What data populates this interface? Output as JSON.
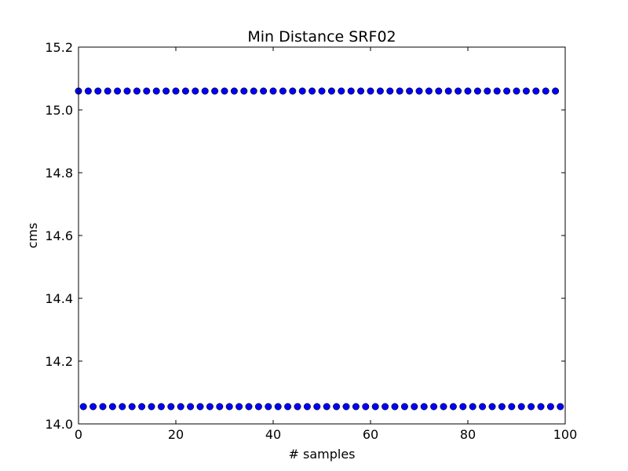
{
  "chart_data": {
    "type": "scatter",
    "title": "Min Distance SRF02",
    "xlabel": "# samples",
    "ylabel": "cms",
    "xlim": [
      0,
      100
    ],
    "ylim": [
      14.0,
      15.2
    ],
    "xticks": [
      "0",
      "20",
      "40",
      "60",
      "80",
      "100"
    ],
    "yticks": [
      "14.0",
      "14.2",
      "14.4",
      "14.6",
      "14.8",
      "15.0",
      "15.2"
    ],
    "grid": false,
    "marker_color": "#0000ff",
    "series": [
      {
        "x": [
          0,
          2,
          4,
          6,
          8,
          10,
          12,
          14,
          16,
          18,
          20,
          22,
          24,
          26,
          28,
          30,
          32,
          34,
          36,
          38,
          40,
          42,
          44,
          46,
          48,
          50,
          52,
          54,
          56,
          58,
          60,
          62,
          64,
          66,
          68,
          70,
          72,
          74,
          76,
          78,
          80,
          82,
          84,
          86,
          88,
          90,
          92,
          94,
          96,
          98
        ],
        "y": [
          15.06,
          15.06,
          15.06,
          15.06,
          15.06,
          15.06,
          15.06,
          15.06,
          15.06,
          15.06,
          15.06,
          15.06,
          15.06,
          15.06,
          15.06,
          15.06,
          15.06,
          15.06,
          15.06,
          15.06,
          15.06,
          15.06,
          15.06,
          15.06,
          15.06,
          15.06,
          15.06,
          15.06,
          15.06,
          15.06,
          15.06,
          15.06,
          15.06,
          15.06,
          15.06,
          15.06,
          15.06,
          15.06,
          15.06,
          15.06,
          15.06,
          15.06,
          15.06,
          15.06,
          15.06,
          15.06,
          15.06,
          15.06,
          15.06,
          15.06
        ]
      },
      {
        "x": [
          1,
          3,
          5,
          7,
          9,
          11,
          13,
          15,
          17,
          19,
          21,
          23,
          25,
          27,
          29,
          31,
          33,
          35,
          37,
          39,
          41,
          43,
          45,
          47,
          49,
          51,
          53,
          55,
          57,
          59,
          61,
          63,
          65,
          67,
          69,
          71,
          73,
          75,
          77,
          79,
          81,
          83,
          85,
          87,
          89,
          91,
          93,
          95,
          97,
          99
        ],
        "y": [
          14.055,
          14.055,
          14.055,
          14.055,
          14.055,
          14.055,
          14.055,
          14.055,
          14.055,
          14.055,
          14.055,
          14.055,
          14.055,
          14.055,
          14.055,
          14.055,
          14.055,
          14.055,
          14.055,
          14.055,
          14.055,
          14.055,
          14.055,
          14.055,
          14.055,
          14.055,
          14.055,
          14.055,
          14.055,
          14.055,
          14.055,
          14.055,
          14.055,
          14.055,
          14.055,
          14.055,
          14.055,
          14.055,
          14.055,
          14.055,
          14.055,
          14.055,
          14.055,
          14.055,
          14.055,
          14.055,
          14.055,
          14.055,
          14.055,
          14.055
        ]
      }
    ]
  }
}
